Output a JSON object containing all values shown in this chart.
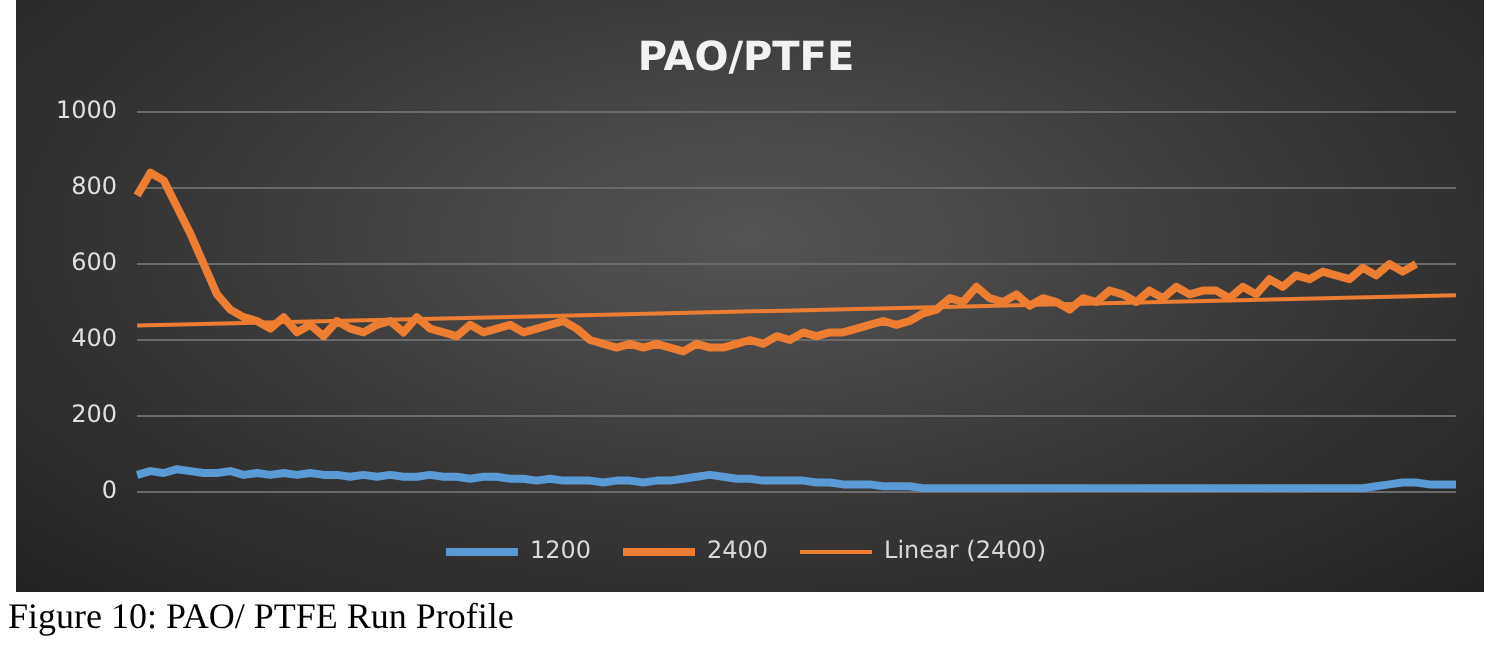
{
  "chart_data": {
    "type": "line",
    "title": "PAO/PTFE",
    "categories": [
      null,
      null,
      null,
      null,
      null,
      null,
      null,
      null,
      null,
      null,
      null,
      null,
      null,
      null,
      null,
      null,
      null,
      null,
      null,
      null,
      null,
      null,
      null,
      null,
      null,
      null,
      null,
      null,
      null,
      null,
      null,
      null,
      null,
      null,
      null,
      null,
      null,
      null,
      null,
      null,
      null,
      null,
      null,
      null,
      null,
      null,
      null,
      null,
      null,
      null,
      null,
      null,
      null,
      null,
      null,
      null,
      null,
      null,
      null,
      null,
      null,
      null,
      null,
      null,
      null,
      null,
      null,
      null,
      null,
      null,
      null,
      null,
      null,
      null,
      null,
      null,
      null,
      null,
      null,
      null,
      null,
      null,
      null,
      null,
      null,
      null,
      null,
      null,
      null,
      null,
      null,
      null,
      null,
      null,
      null,
      null,
      null,
      null,
      null,
      null
    ],
    "series": [
      {
        "name": "1200",
        "color": "#5b9bd5",
        "values": [
          45,
          55,
          50,
          60,
          55,
          50,
          50,
          55,
          45,
          50,
          45,
          50,
          45,
          50,
          45,
          45,
          40,
          45,
          40,
          45,
          40,
          40,
          45,
          40,
          40,
          35,
          40,
          40,
          35,
          35,
          30,
          35,
          30,
          30,
          30,
          25,
          30,
          30,
          25,
          30,
          30,
          35,
          40,
          45,
          40,
          35,
          35,
          30,
          30,
          30,
          30,
          25,
          25,
          20,
          20,
          20,
          15,
          15,
          15,
          10,
          10,
          10,
          10,
          10,
          10,
          10,
          10,
          10,
          10,
          10,
          10,
          10,
          10,
          10,
          10,
          10,
          10,
          10,
          10,
          10,
          10,
          10,
          10,
          10,
          10,
          10,
          10,
          10,
          10,
          10,
          10,
          10,
          10,
          15,
          20,
          25,
          25,
          20,
          20,
          20
        ]
      },
      {
        "name": "2400",
        "color": "#ed7d31",
        "values": [
          780,
          840,
          820,
          750,
          680,
          600,
          520,
          480,
          460,
          450,
          430,
          460,
          420,
          440,
          410,
          450,
          430,
          420,
          440,
          450,
          420,
          460,
          430,
          420,
          410,
          440,
          420,
          430,
          440,
          420,
          430,
          440,
          450,
          430,
          400,
          390,
          380,
          390,
          380,
          390,
          380,
          370,
          390,
          380,
          380,
          390,
          400,
          390,
          410,
          400,
          420,
          410,
          420,
          420,
          430,
          440,
          450,
          440,
          450,
          470,
          480,
          510,
          500,
          540,
          510,
          500,
          520,
          490,
          510,
          500,
          480,
          510,
          500,
          530,
          520,
          500,
          530,
          510,
          540,
          520,
          530,
          530,
          510,
          540,
          520,
          560,
          540,
          570,
          560,
          580,
          570,
          560,
          590,
          570,
          600,
          580,
          600,
          null,
          null,
          null
        ]
      },
      {
        "name": "Linear (2400)",
        "color": "#ed7d31",
        "values": [
          438,
          null,
          null,
          null,
          null,
          null,
          null,
          null,
          null,
          null,
          null,
          null,
          null,
          null,
          null,
          null,
          null,
          null,
          null,
          null,
          null,
          null,
          null,
          null,
          null,
          null,
          null,
          null,
          null,
          null,
          null,
          null,
          null,
          null,
          null,
          null,
          null,
          null,
          null,
          null,
          null,
          null,
          null,
          null,
          null,
          null,
          null,
          null,
          null,
          null,
          null,
          null,
          null,
          null,
          null,
          null,
          null,
          null,
          null,
          null,
          null,
          null,
          null,
          null,
          null,
          null,
          null,
          null,
          null,
          null,
          null,
          null,
          null,
          null,
          null,
          null,
          null,
          null,
          null,
          null,
          null,
          null,
          null,
          null,
          null,
          null,
          null,
          null,
          null,
          null,
          null,
          null,
          null,
          null,
          null,
          null,
          null,
          null,
          null,
          518
        ]
      }
    ],
    "ylim": [
      0,
      1000
    ],
    "yticks": [
      0,
      200,
      400,
      600,
      800,
      1000
    ],
    "grid": "y",
    "legend": "bottom",
    "marker": "none",
    "line_style": "solid",
    "annotations": [
      "Figure 10: PAO/ PTFE Run Profile"
    ]
  }
}
